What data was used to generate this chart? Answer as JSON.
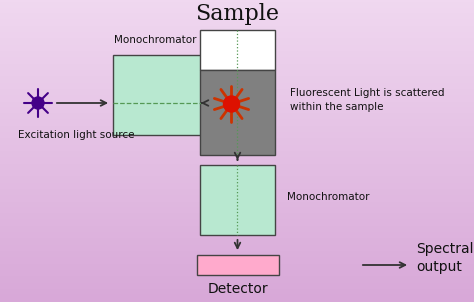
{
  "title": "Sample",
  "title_fontsize": 16,
  "mono1_label": "Monochromator",
  "mono2_label": "Monochromator",
  "excitation_label": "Excitation light source",
  "fluorescent_label": "Fluorescent Light is scattered\nwithin the sample",
  "detector_label": "Detector",
  "spectral_label": "Spectral\noutput",
  "bg_top": "#d8a8d8",
  "bg_bottom": "#f0d8f0",
  "mono_box_color": "#b8e8d0",
  "sample_top_color": "#ffffff",
  "sample_bottom_color": "#808080",
  "detector_color": "#ffaacc",
  "sun_center_color": "#dd1100",
  "sun_ray_color": "#cc3300",
  "light_source_color": "#440088",
  "light_source_ray_color": "#440088",
  "dashed_line_color": "#559955",
  "arrow_color": "#333333",
  "text_color": "#111111"
}
